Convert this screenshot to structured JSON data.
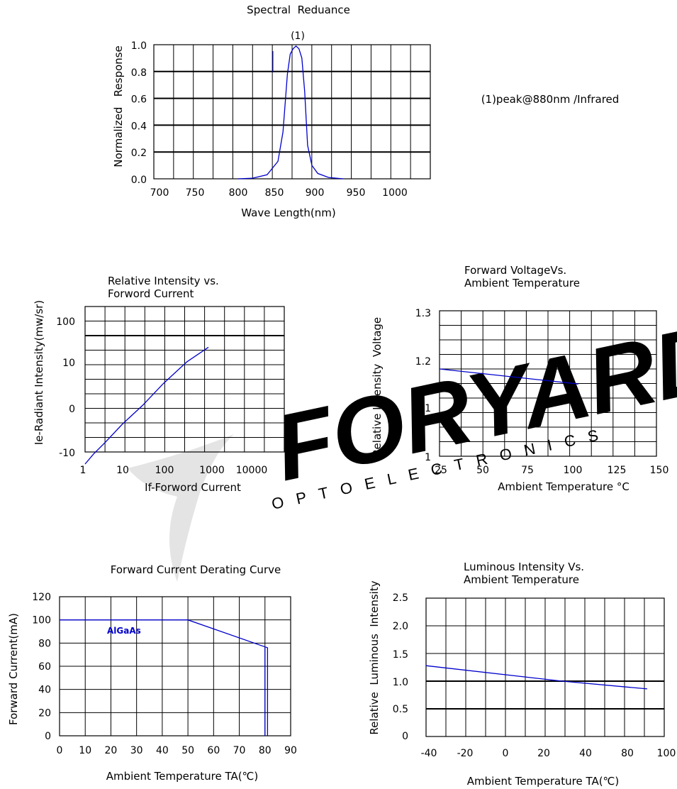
{
  "watermark": {
    "brand": "FORYARD",
    "sub": "OPTOELECTRONICS"
  },
  "chart_data": [
    {
      "type": "line",
      "title": "Spectral  Reduance",
      "xlabel": "Wave Length(nm)",
      "ylabel": "Normalized   Response",
      "annotation": "(1)",
      "note": "(1)peak@880nm /Infrared",
      "xlim": [
        700,
        1000
      ],
      "ylim": [
        0,
        1.0
      ],
      "xticks": [
        "700",
        "750",
        "800",
        "850",
        "900",
        "950",
        "1000"
      ],
      "yticks": [
        "0.0",
        "0.2",
        "0.4",
        "0.6",
        "0.8",
        "1.0"
      ],
      "series": [
        {
          "x": [
            800,
            820,
            840,
            855,
            862,
            868,
            872,
            876,
            880,
            884,
            888,
            892,
            896,
            902,
            910,
            925,
            945
          ],
          "y": [
            0,
            0.005,
            0.03,
            0.13,
            0.35,
            0.78,
            0.93,
            0.97,
            0.99,
            0.97,
            0.9,
            0.65,
            0.25,
            0.1,
            0.04,
            0.01,
            0
          ]
        }
      ],
      "color": "#0000cc",
      "grid": true
    },
    {
      "type": "line",
      "title": "Relative Intensity vs.\nForword Current",
      "xlabel": "If-Forword Current",
      "ylabel": "Ie-Radiant Intensity(mw/sr)",
      "xscale": "log",
      "xticks": [
        "1",
        "10",
        "100",
        "1000",
        "10000"
      ],
      "yticks": [
        "100",
        "10",
        "0",
        "-10"
      ],
      "series": [
        {
          "x": [
            1,
            1.6,
            3.2,
            8,
            25,
            80,
            300,
            1000
          ],
          "y": [
            -8.3,
            -1.5,
            7,
            19,
            32,
            47,
            62,
            72
          ]
        }
      ],
      "y_units_note": "y values in percent of plot height from the –10 tick to the 100 tick",
      "color": "#0000cc",
      "grid": true
    },
    {
      "type": "line",
      "title": "Forward VoltageVs.\nAmbient Temperature",
      "xlabel": "Ambient Temperature °C",
      "ylabel": "Relative Intensity  Voltage",
      "xlim": [
        25,
        150
      ],
      "ylim": [
        1.0,
        1.3
      ],
      "xticks": [
        "25",
        "50",
        "75",
        "100",
        "125",
        "150"
      ],
      "yticks": [
        "1",
        "1.1",
        "1.2",
        "1.3"
      ],
      "series": [
        {
          "x": [
            25,
            105
          ],
          "y": [
            1.18,
            1.149
          ]
        }
      ],
      "color": "#0000cc",
      "grid": true
    },
    {
      "type": "line",
      "title": "Forward Current Derating Curve",
      "xlabel": "Ambient Temperature TA(℃)",
      "ylabel": "Forward Current(mA)",
      "xlim": [
        0,
        90
      ],
      "ylim": [
        0,
        120
      ],
      "xticks": [
        "0",
        "10",
        "20",
        "30",
        "40",
        "50",
        "60",
        "70",
        "80",
        "90"
      ],
      "yticks": [
        "0",
        "20",
        "40",
        "60",
        "80",
        "100",
        "120"
      ],
      "series": [
        {
          "name": "AlGaAs",
          "x": [
            0,
            50,
            81,
            81
          ],
          "y": [
            100,
            100,
            76,
            0
          ]
        }
      ],
      "color": "#0000cc",
      "grid": true
    },
    {
      "type": "line",
      "title": "Luminous Intensity Vs.\nAmbient Temperature",
      "xlabel": "Ambient Temperature TA(℃)",
      "ylabel": "Relative  Luminous  Intensity",
      "xlim": [
        -40,
        100
      ],
      "ylim": [
        0,
        2.5
      ],
      "xticks": [
        "-40",
        "-20",
        "0",
        "20",
        "40",
        "80",
        "100"
      ],
      "yticks": [
        "0",
        "0.5",
        "1.0",
        "1.5",
        "2.0",
        "2.5"
      ],
      "series": [
        {
          "x": [
            -40,
            40,
            90
          ],
          "y": [
            1.28,
            1.0,
            0.86
          ]
        }
      ],
      "color": "#0000cc",
      "grid": true
    }
  ]
}
